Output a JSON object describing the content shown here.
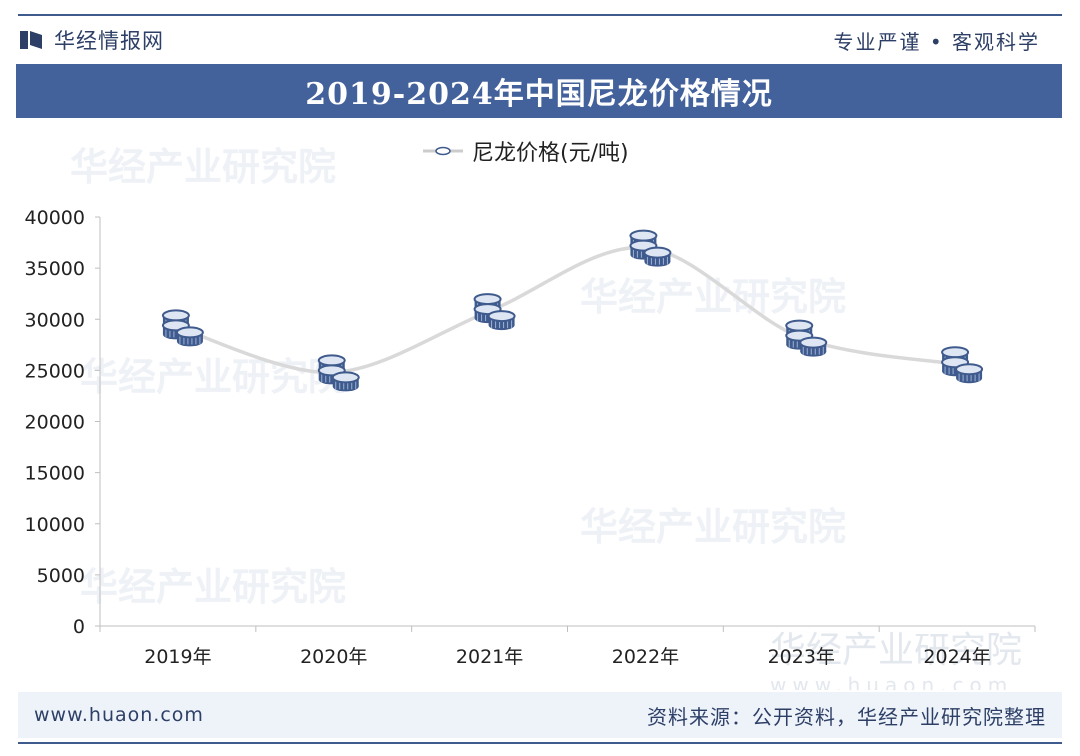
{
  "header": {
    "brand_name": "华经情报网",
    "slogan": "专业严谨 • 客观科学"
  },
  "footer": {
    "url": "www.huaon.com",
    "source": "资料来源：公开资料，华经产业研究院整理"
  },
  "watermark": {
    "text": "华经产业研究院",
    "url": "www.huaon.com"
  },
  "colors": {
    "brand": "#43619b",
    "line": "#d9d9d9",
    "coin": "#3f5a8c"
  },
  "chart_data": {
    "type": "line",
    "title": "2019-2024年中国尼龙价格情况",
    "categories": [
      "2019年",
      "2020年",
      "2021年",
      "2022年",
      "2023年",
      "2024年"
    ],
    "series": [
      {
        "name": "尼龙价格(元/吨)",
        "values": [
          29200,
          24800,
          30800,
          37000,
          28200,
          25600
        ]
      }
    ],
    "ylim": [
      0,
      40000
    ],
    "yticks": [
      0,
      5000,
      10000,
      15000,
      20000,
      25000,
      30000,
      35000,
      40000
    ],
    "legend": "top-center",
    "grid": false,
    "smooth": true,
    "marker": "coin-stack-icon"
  }
}
